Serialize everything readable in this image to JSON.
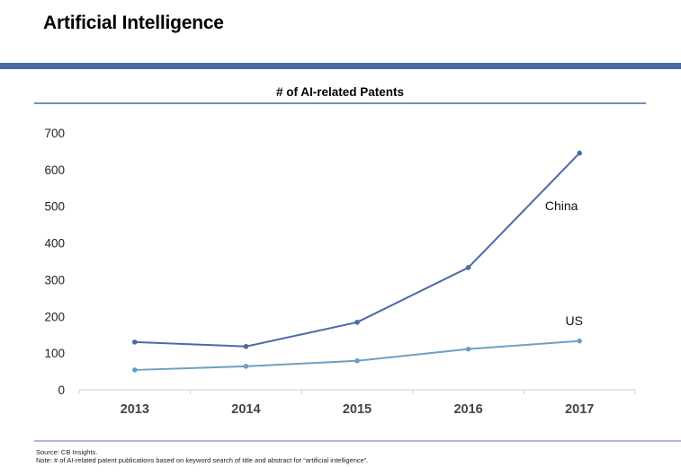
{
  "page": {
    "title": "Artificial Intelligence",
    "source": "Source:  CB Insights.",
    "note": "Note:  # of AI-related patent publications based on keyword search of title and abstract for “artificial intelligence”."
  },
  "colors": {
    "header_rule": "#4a6aa5",
    "china": "#4a6aa5",
    "us": "#6aa0c4",
    "axis": "#cfcfcf",
    "footer_rule": "#7f93b8"
  },
  "chart_data": {
    "type": "line",
    "title": "# of AI-related Patents",
    "categories": [
      "2013",
      "2014",
      "2015",
      "2016",
      "2017"
    ],
    "series": [
      {
        "name": "China",
        "values": [
          130,
          118,
          184,
          333,
          645
        ]
      },
      {
        "name": "US",
        "values": [
          54,
          64,
          79,
          111,
          133
        ]
      }
    ],
    "yticks": [
      "0",
      "100",
      "200",
      "300",
      "400",
      "500",
      "600",
      "700"
    ],
    "ylim": [
      0,
      700
    ],
    "xlabel": "",
    "ylabel": "",
    "grid": false,
    "legend": "inline labels near line ends"
  }
}
